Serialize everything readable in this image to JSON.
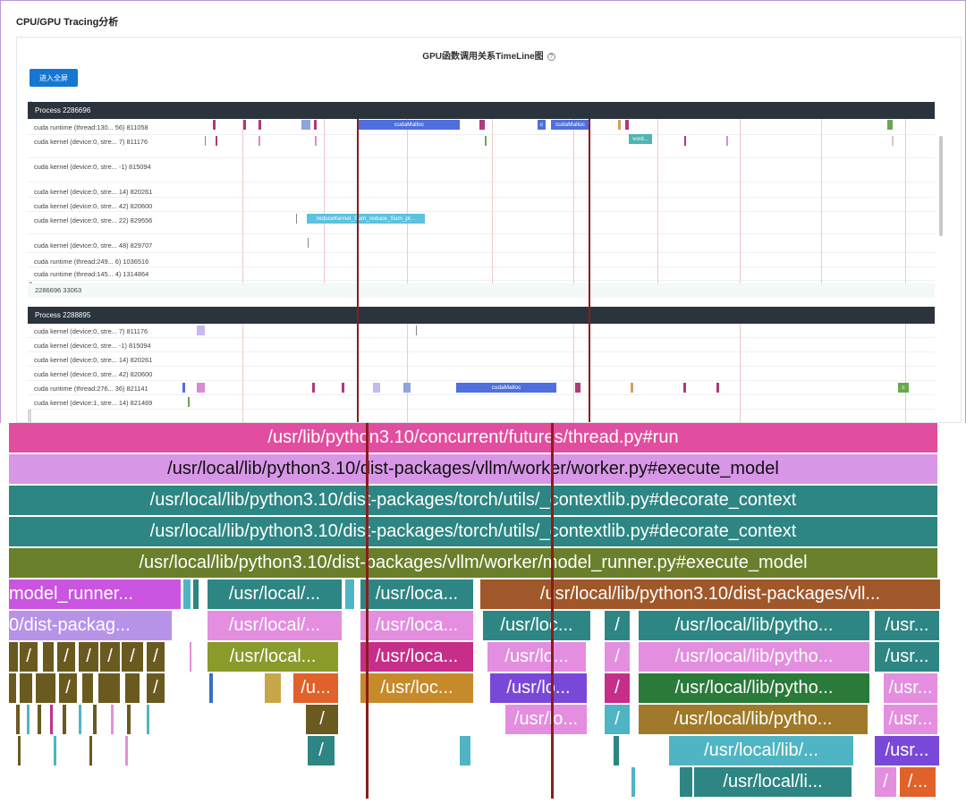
{
  "page": {
    "title": "CPU/GPU Tracing分析"
  },
  "panel": {
    "chart_title": "GPU函数调用关系TimeLine图",
    "help_glyph": "?",
    "fullscreen_button": "进入全屏"
  },
  "timeline": {
    "processes": [
      {
        "label": "Process 2286696",
        "lanes": [
          "cuda runtime (thread:130... 56) 811058",
          "cuda kernel (device:0, stre... 7) 811176",
          "cuda kernel (device:0, stre... -1) 815094",
          "cuda kernel (device:0, stre... 14) 820261",
          "cuda kernel (device:0, stre... 42) 820600",
          "cuda kernel (device:0, stre... 22) 829556",
          "cuda kernel (device:0, stre... 48) 829707",
          "cuda runtime (thread:249... 6) 1036516",
          "cuda runtime (thread:145... 4) 1314864"
        ],
        "summary": "2286696 33063"
      },
      {
        "label": "Process 2288895",
        "lanes": [
          "cuda kernel (device:0, stre... 7) 811176",
          "cuda kernel (device:0, stre... -1) 815094",
          "cuda kernel (device:0, stre... 14) 820261",
          "cuda kernel (device:0, stre... 42) 820600",
          "cuda runtime (thread:276... 36) 821141",
          "cuda kernel (device:1, stre... 14) 821469"
        ]
      }
    ],
    "event_labels": {
      "cuda_malloc": "cudaMalloc",
      "c": "c",
      "vord": "vord...",
      "reduce": "reduceKernel_Sum_reduce_Sum_pt...",
      "c2": "c"
    }
  },
  "flame": {
    "frames": [
      "/usr/lib/python3.10/concurrent/futures/thread.py#run",
      "/usr/local/lib/python3.10/dist-packages/vllm/worker/worker.py#execute_model",
      "/usr/local/lib/python3.10/dist-packages/torch/utils/_contextlib.py#decorate_context",
      "/usr/local/lib/python3.10/dist-packages/torch/utils/_contextlib.py#decorate_context",
      "/usr/local/lib/python3.10/dist-packages/vllm/worker/model_runner.py#execute_model",
      "model_runner...",
      "/usr/local/...",
      "/usr/loca...",
      "/usr/local/lib/python3.10/dist-packages/vll...",
      "0/dist-packag...",
      "/usr/loc...",
      "/usr/local/lib/pytho...",
      "/usr...",
      "/usr/local...",
      "/usr/lo...",
      "/u...",
      "/usr/local/lib/...",
      "/usr/local/li...",
      "/",
      "/..."
    ]
  }
}
